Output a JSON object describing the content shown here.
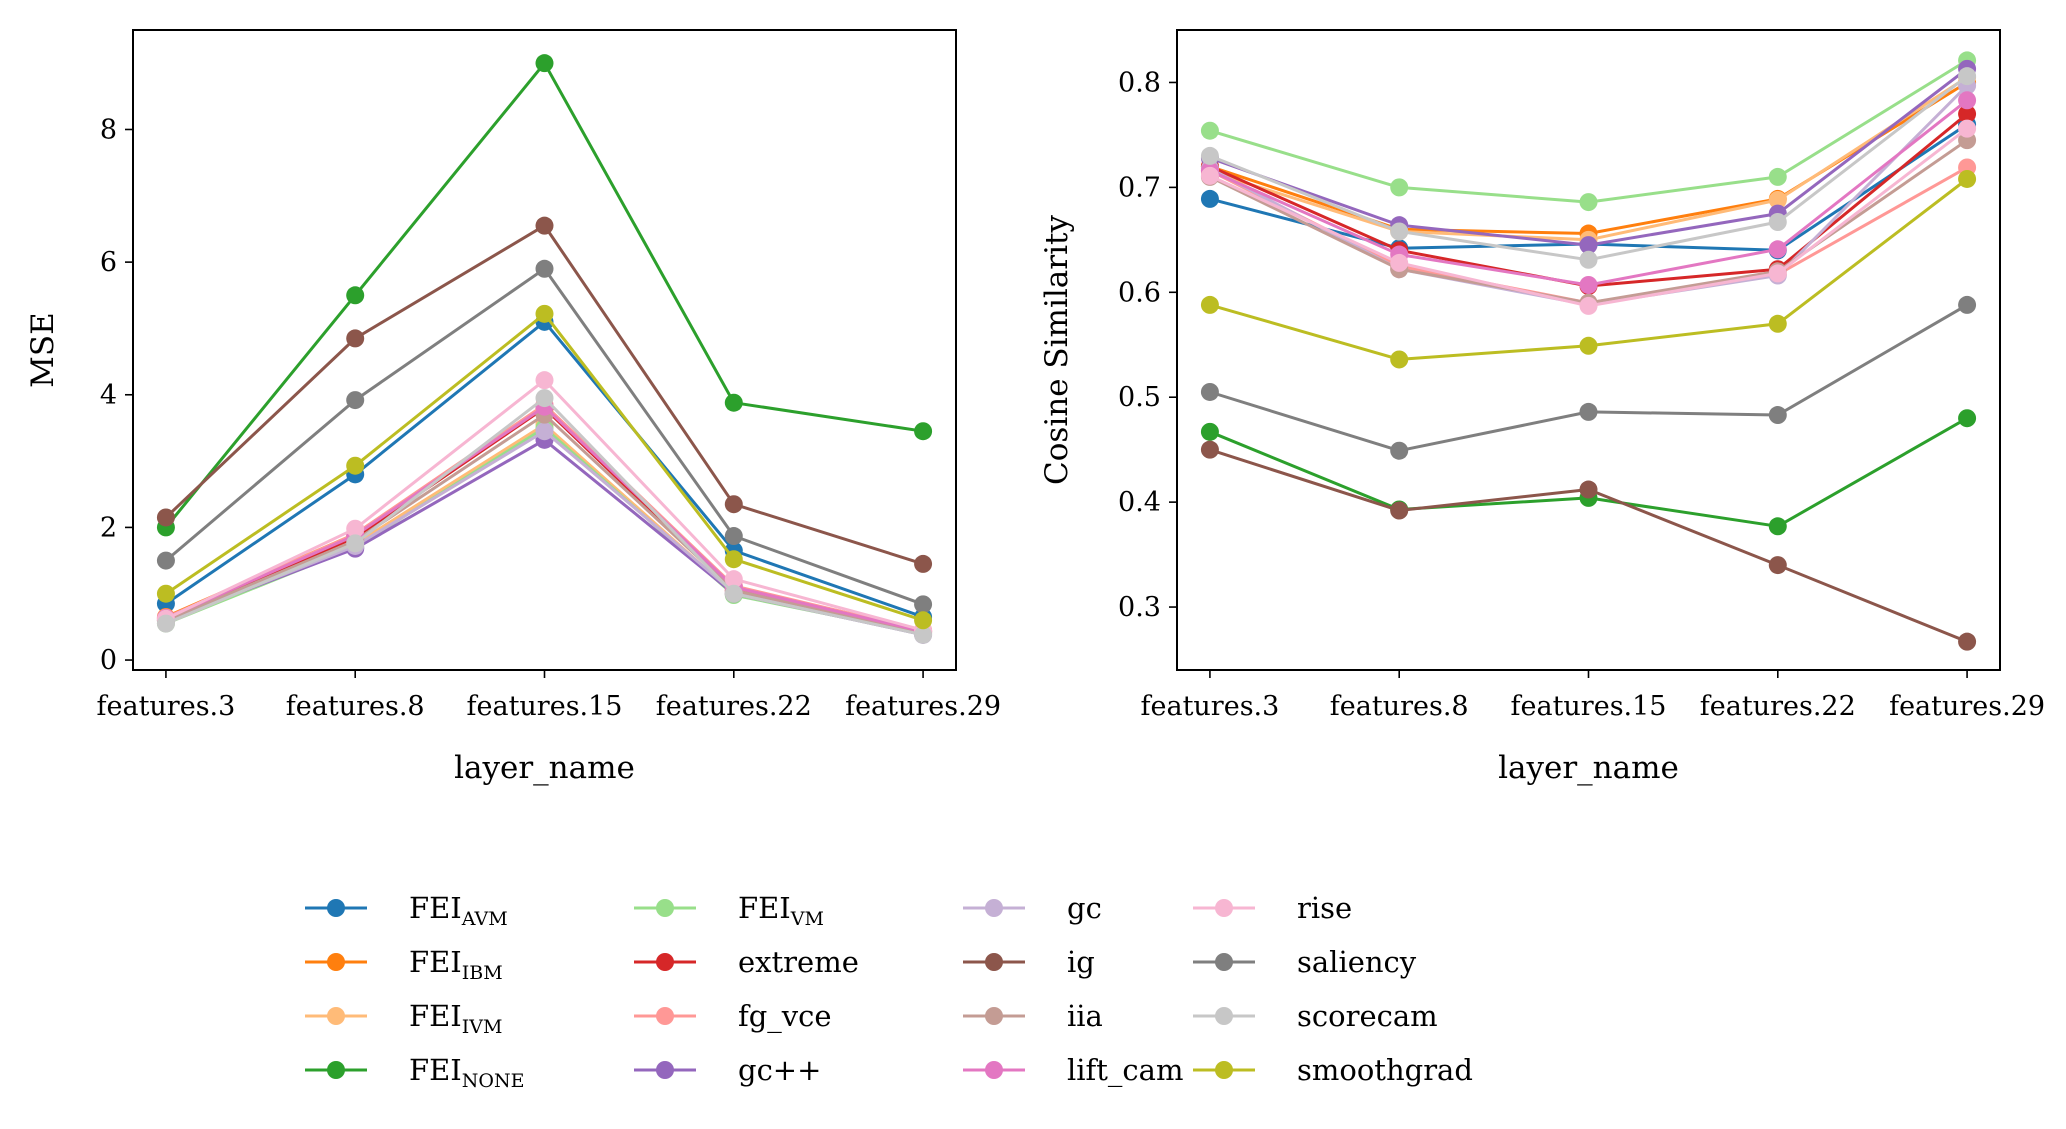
{
  "chart_data": [
    {
      "type": "line",
      "categories": [
        "features.3",
        "features.8",
        "features.15",
        "features.22",
        "features.29"
      ],
      "xlabel": "layer_name",
      "ylabel": "MSE",
      "ylim": [
        -0.15,
        9.5
      ],
      "yticks": [
        "0",
        "2",
        "4",
        "6",
        "8"
      ],
      "series": [
        {
          "key": "FEI_AVM",
          "values": [
            0.85,
            2.8,
            5.1,
            1.65,
            0.65
          ]
        },
        {
          "key": "FEI_IBM",
          "values": [
            0.65,
            1.9,
            3.8,
            1.1,
            0.45
          ]
        },
        {
          "key": "FEI_IVM",
          "values": [
            0.6,
            1.75,
            3.55,
            1.0,
            0.42
          ]
        },
        {
          "key": "FEI_NONE",
          "values": [
            2.0,
            5.5,
            9.0,
            3.88,
            3.45
          ]
        },
        {
          "key": "FEI_VM",
          "values": [
            0.55,
            1.7,
            3.5,
            0.98,
            0.4
          ]
        },
        {
          "key": "extreme",
          "values": [
            0.62,
            1.85,
            3.8,
            1.05,
            0.43
          ]
        },
        {
          "key": "fg_vce",
          "values": [
            0.64,
            1.9,
            3.85,
            1.12,
            0.44
          ]
        },
        {
          "key": "gc++",
          "values": [
            0.6,
            1.68,
            3.32,
            1.0,
            0.38
          ]
        },
        {
          "key": "gc",
          "values": [
            0.58,
            1.72,
            3.45,
            1.02,
            0.4
          ]
        },
        {
          "key": "ig",
          "values": [
            2.15,
            4.85,
            6.55,
            2.35,
            1.45
          ]
        },
        {
          "key": "iia",
          "values": [
            0.6,
            1.8,
            3.7,
            1.05,
            0.42
          ]
        },
        {
          "key": "lift_cam",
          "values": [
            0.63,
            1.88,
            3.82,
            1.1,
            0.43
          ]
        },
        {
          "key": "rise",
          "values": [
            0.62,
            1.98,
            4.22,
            1.22,
            0.45
          ]
        },
        {
          "key": "saliency",
          "values": [
            1.5,
            3.92,
            5.9,
            1.87,
            0.84
          ]
        },
        {
          "key": "scorecam",
          "values": [
            0.55,
            1.76,
            3.95,
            1.0,
            0.38
          ]
        },
        {
          "key": "smoothgrad",
          "values": [
            1.0,
            2.93,
            5.22,
            1.52,
            0.6
          ]
        }
      ]
    },
    {
      "type": "line",
      "categories": [
        "features.3",
        "features.8",
        "features.15",
        "features.22",
        "features.29"
      ],
      "xlabel": "layer_name",
      "ylabel": "Cosine Similarity",
      "ylim": [
        0.24,
        0.85
      ],
      "yticks": [
        "0.3",
        "0.4",
        "0.5",
        "0.6",
        "0.7",
        "0.8"
      ],
      "series": [
        {
          "key": "FEI_AVM",
          "values": [
            0.689,
            0.642,
            0.646,
            0.64,
            0.76
          ]
        },
        {
          "key": "FEI_IBM",
          "values": [
            0.72,
            0.66,
            0.656,
            0.689,
            0.8
          ]
        },
        {
          "key": "FEI_IVM",
          "values": [
            0.715,
            0.658,
            0.65,
            0.688,
            0.805
          ]
        },
        {
          "key": "FEI_NONE",
          "values": [
            0.467,
            0.393,
            0.404,
            0.377,
            0.48
          ]
        },
        {
          "key": "FEI_VM",
          "values": [
            0.754,
            0.7,
            0.686,
            0.71,
            0.821
          ]
        },
        {
          "key": "extreme",
          "values": [
            0.72,
            0.64,
            0.606,
            0.622,
            0.77
          ]
        },
        {
          "key": "fg_vce",
          "values": [
            0.716,
            0.625,
            0.59,
            0.617,
            0.719
          ]
        },
        {
          "key": "gc++",
          "values": [
            0.728,
            0.664,
            0.645,
            0.675,
            0.813
          ]
        },
        {
          "key": "gc",
          "values": [
            0.718,
            0.622,
            0.588,
            0.616,
            0.797
          ]
        },
        {
          "key": "ig",
          "values": [
            0.45,
            0.392,
            0.412,
            0.34,
            0.267
          ]
        },
        {
          "key": "iia",
          "values": [
            0.71,
            0.622,
            0.59,
            0.62,
            0.745
          ]
        },
        {
          "key": "lift_cam",
          "values": [
            0.716,
            0.636,
            0.607,
            0.641,
            0.783
          ]
        },
        {
          "key": "rise",
          "values": [
            0.711,
            0.628,
            0.587,
            0.618,
            0.756
          ]
        },
        {
          "key": "saliency",
          "values": [
            0.505,
            0.449,
            0.486,
            0.483,
            0.588
          ]
        },
        {
          "key": "scorecam",
          "values": [
            0.73,
            0.658,
            0.631,
            0.667,
            0.806
          ]
        },
        {
          "key": "smoothgrad",
          "values": [
            0.588,
            0.536,
            0.549,
            0.57,
            0.708
          ]
        }
      ]
    }
  ],
  "legend": {
    "items": [
      {
        "key": "FEI_AVM",
        "base": "FEI",
        "sub": "AVM",
        "color": "#1f77b4"
      },
      {
        "key": "FEI_IBM",
        "base": "FEI",
        "sub": "IBM",
        "color": "#ff7f0e"
      },
      {
        "key": "FEI_IVM",
        "base": "FEI",
        "sub": "IVM",
        "color": "#ffbb78"
      },
      {
        "key": "FEI_NONE",
        "base": "FEI",
        "sub": "NONE",
        "color": "#2ca02c"
      },
      {
        "key": "FEI_VM",
        "base": "FEI",
        "sub": "VM",
        "color": "#98df8a"
      },
      {
        "key": "extreme",
        "base": "extreme",
        "sub": "",
        "color": "#d62728"
      },
      {
        "key": "fg_vce",
        "base": "fg_vce",
        "sub": "",
        "color": "#ff9896"
      },
      {
        "key": "gc++",
        "base": "gc++",
        "sub": "",
        "color": "#9467bd"
      },
      {
        "key": "gc",
        "base": "gc",
        "sub": "",
        "color": "#c5b0d5"
      },
      {
        "key": "ig",
        "base": "ig",
        "sub": "",
        "color": "#8c564b"
      },
      {
        "key": "iia",
        "base": "iia",
        "sub": "",
        "color": "#c49c94"
      },
      {
        "key": "lift_cam",
        "base": "lift_cam",
        "sub": "",
        "color": "#e377c2"
      },
      {
        "key": "rise",
        "base": "rise",
        "sub": "",
        "color": "#f7b6d2"
      },
      {
        "key": "saliency",
        "base": "saliency",
        "sub": "",
        "color": "#7f7f7f"
      },
      {
        "key": "scorecam",
        "base": "scorecam",
        "sub": "",
        "color": "#c7c7c7"
      },
      {
        "key": "smoothgrad",
        "base": "smoothgrad",
        "sub": "",
        "color": "#bcbd22"
      }
    ]
  }
}
